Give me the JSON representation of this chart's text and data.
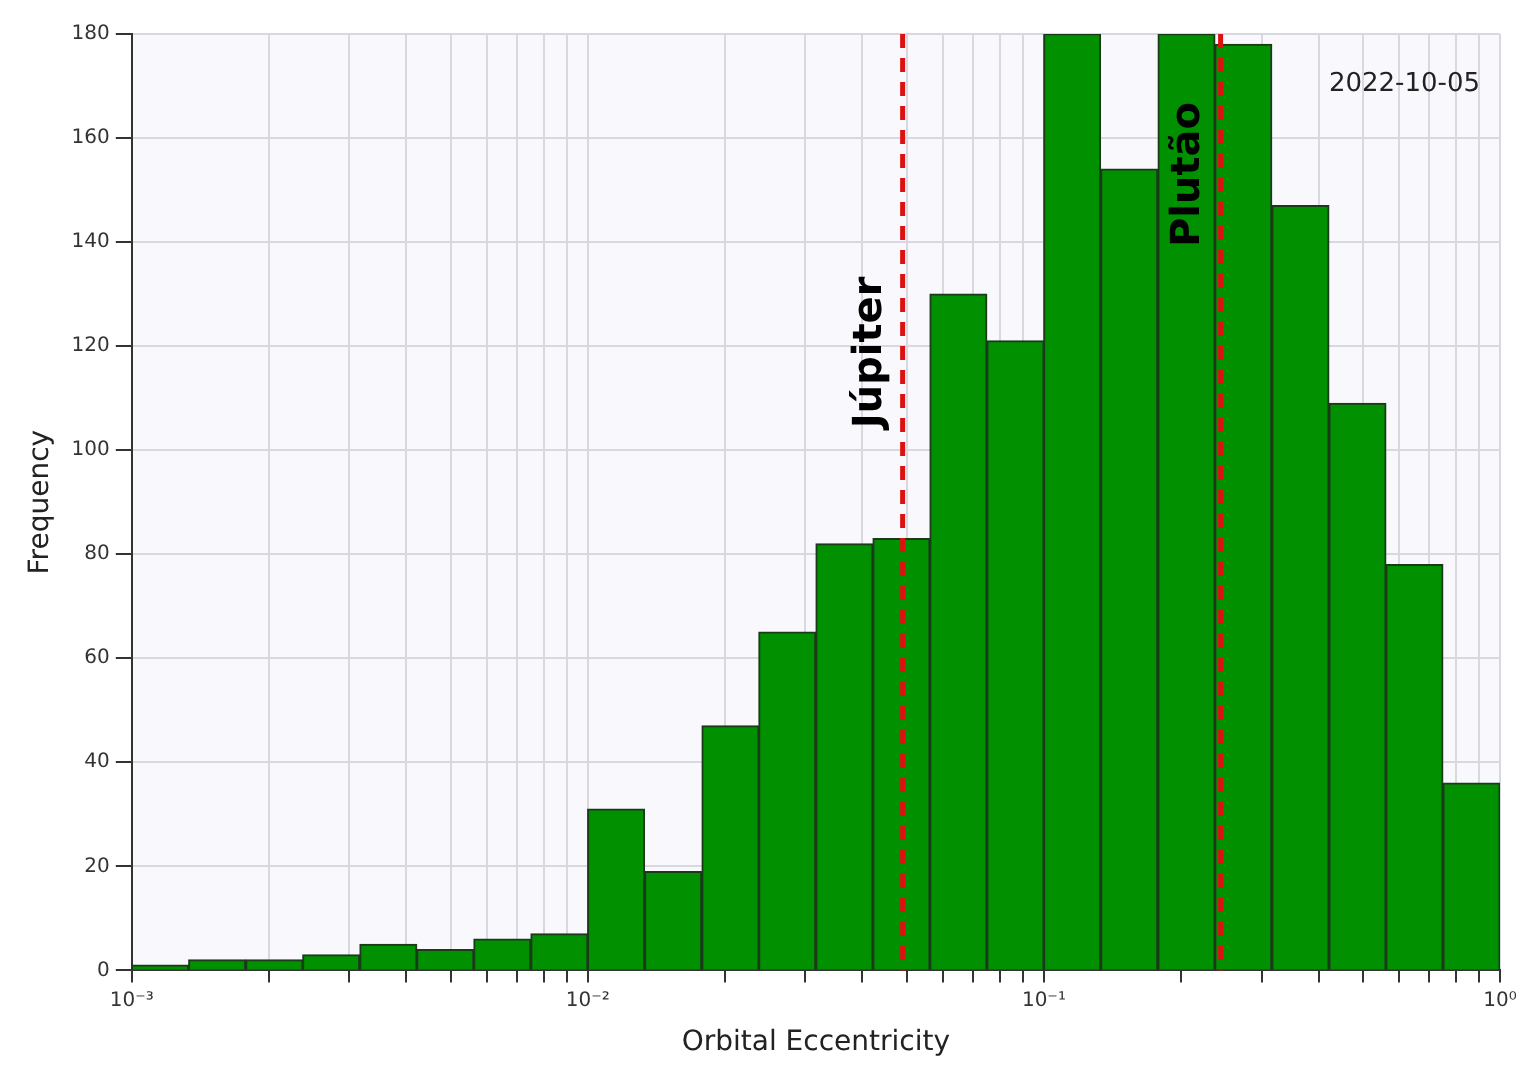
{
  "chart_data": {
    "type": "histogram",
    "xlabel": "Orbital Eccentricity",
    "ylabel": "Frequency",
    "bins": [
      0.001,
      0.00133,
      0.00178,
      0.00237,
      0.00316,
      0.00422,
      0.00562,
      0.0075,
      0.01,
      0.0133,
      0.0178,
      0.0237,
      0.0316,
      0.0422,
      0.0562,
      0.075,
      0.1,
      0.133,
      0.178,
      0.237,
      0.316,
      0.422,
      0.562,
      0.75,
      1
    ],
    "values": [
      1,
      2,
      2,
      3,
      5,
      4,
      6,
      7,
      31,
      19,
      47,
      65,
      82,
      83,
      130,
      121,
      180,
      154,
      180,
      178,
      147,
      109,
      78,
      36
    ],
    "color": "#009000",
    "log": "x",
    "xlim": [
      0.001,
      1
    ],
    "xticks": [
      {
        "value": 0.001,
        "label": "10⁻³"
      },
      {
        "value": 0.002,
        "label": null
      },
      {
        "value": 0.003,
        "label": null
      },
      {
        "value": 0.004,
        "label": null
      },
      {
        "value": 0.005,
        "label": null
      },
      {
        "value": 0.006,
        "label": null
      },
      {
        "value": 0.007,
        "label": null
      },
      {
        "value": 0.008,
        "label": null
      },
      {
        "value": 0.009,
        "label": null
      },
      {
        "value": 0.01,
        "label": "10⁻²"
      },
      {
        "value": 0.02,
        "label": null
      },
      {
        "value": 0.03,
        "label": null
      },
      {
        "value": 0.04,
        "label": null
      },
      {
        "value": 0.05,
        "label": null
      },
      {
        "value": 0.06,
        "label": null
      },
      {
        "value": 0.07,
        "label": null
      },
      {
        "value": 0.08,
        "label": null
      },
      {
        "value": 0.09,
        "label": null
      },
      {
        "value": 0.1,
        "label": "10⁻¹"
      },
      {
        "value": 0.2,
        "label": null
      },
      {
        "value": 0.3,
        "label": null
      },
      {
        "value": 0.4,
        "label": null
      },
      {
        "value": 0.5,
        "label": null
      },
      {
        "value": 0.6,
        "label": null
      },
      {
        "value": 0.7,
        "label": null
      },
      {
        "value": 0.8,
        "label": null
      },
      {
        "value": 0.9,
        "label": null
      },
      {
        "value": 1,
        "label": "10⁰"
      }
    ],
    "ylim": [
      0,
      180
    ],
    "yticks": [
      0,
      20,
      40,
      60,
      80,
      100,
      120,
      140,
      160,
      180
    ],
    "grid": true,
    "legend": false,
    "ref_lines": [
      {
        "axis": "x",
        "value": 0.049,
        "label": "Júpiter",
        "color": "#dd1111",
        "line_style": "dashed"
      },
      {
        "axis": "x",
        "value": 0.244,
        "label": "Plutão",
        "color": "#dd1111",
        "line_style": "dashed"
      }
    ],
    "annotations": [
      "2022-10-05"
    ]
  }
}
